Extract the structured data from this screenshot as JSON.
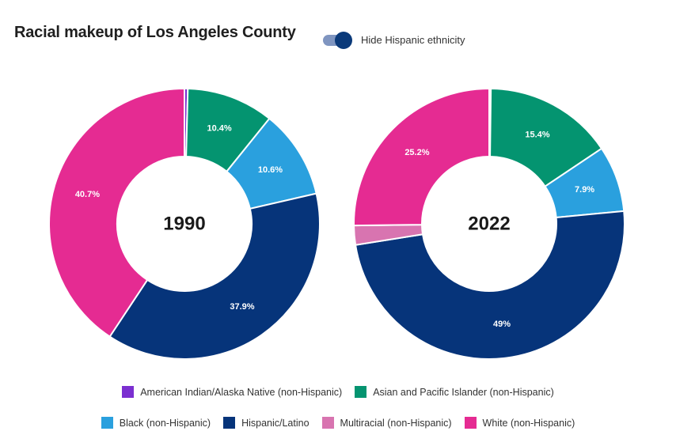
{
  "title": "Racial makeup of Los Angeles County",
  "toggle": {
    "label": "Hide Hispanic ethnicity",
    "on": true
  },
  "colors": {
    "aian": "#7b2fd0",
    "api": "#049470",
    "black": "#2aa0de",
    "hispanic": "#06347a",
    "multiracial": "#d874b0",
    "white": "#e52b92"
  },
  "chart_data": [
    {
      "type": "pie",
      "variant": "donut",
      "center_label": "1990",
      "slices": [
        {
          "key": "aian",
          "name": "American Indian/Alaska Native (non-Hispanic)",
          "value": 0.4,
          "label": ""
        },
        {
          "key": "api",
          "name": "Asian and Pacific Islander (non-Hispanic)",
          "value": 10.4,
          "label": "10.4%"
        },
        {
          "key": "black",
          "name": "Black (non-Hispanic)",
          "value": 10.6,
          "label": "10.6%"
        },
        {
          "key": "hispanic",
          "name": "Hispanic/Latino",
          "value": 37.9,
          "label": "37.9%"
        },
        {
          "key": "multiracial",
          "name": "Multiracial (non-Hispanic)",
          "value": 0,
          "label": ""
        },
        {
          "key": "white",
          "name": "White (non-Hispanic)",
          "value": 40.7,
          "label": "40.7%"
        }
      ]
    },
    {
      "type": "pie",
      "variant": "donut",
      "center_label": "2022",
      "slices": [
        {
          "key": "aian",
          "name": "American Indian/Alaska Native (non-Hispanic)",
          "value": 0.2,
          "label": ""
        },
        {
          "key": "api",
          "name": "Asian and Pacific Islander (non-Hispanic)",
          "value": 15.4,
          "label": "15.4%"
        },
        {
          "key": "black",
          "name": "Black (non-Hispanic)",
          "value": 7.9,
          "label": "7.9%"
        },
        {
          "key": "hispanic",
          "name": "Hispanic/Latino",
          "value": 49,
          "label": "49%"
        },
        {
          "key": "multiracial",
          "name": "Multiracial (non-Hispanic)",
          "value": 2.3,
          "label": ""
        },
        {
          "key": "white",
          "name": "White (non-Hispanic)",
          "value": 25.2,
          "label": "25.2%"
        }
      ]
    }
  ],
  "legend": {
    "row1": [
      {
        "key": "aian",
        "label": "American Indian/Alaska Native (non-Hispanic)"
      },
      {
        "key": "api",
        "label": "Asian and Pacific Islander (non-Hispanic)"
      }
    ],
    "row2": [
      {
        "key": "black",
        "label": "Black (non-Hispanic)"
      },
      {
        "key": "hispanic",
        "label": "Hispanic/Latino"
      },
      {
        "key": "multiracial",
        "label": "Multiracial (non-Hispanic)"
      },
      {
        "key": "white",
        "label": "White (non-Hispanic)"
      }
    ]
  }
}
